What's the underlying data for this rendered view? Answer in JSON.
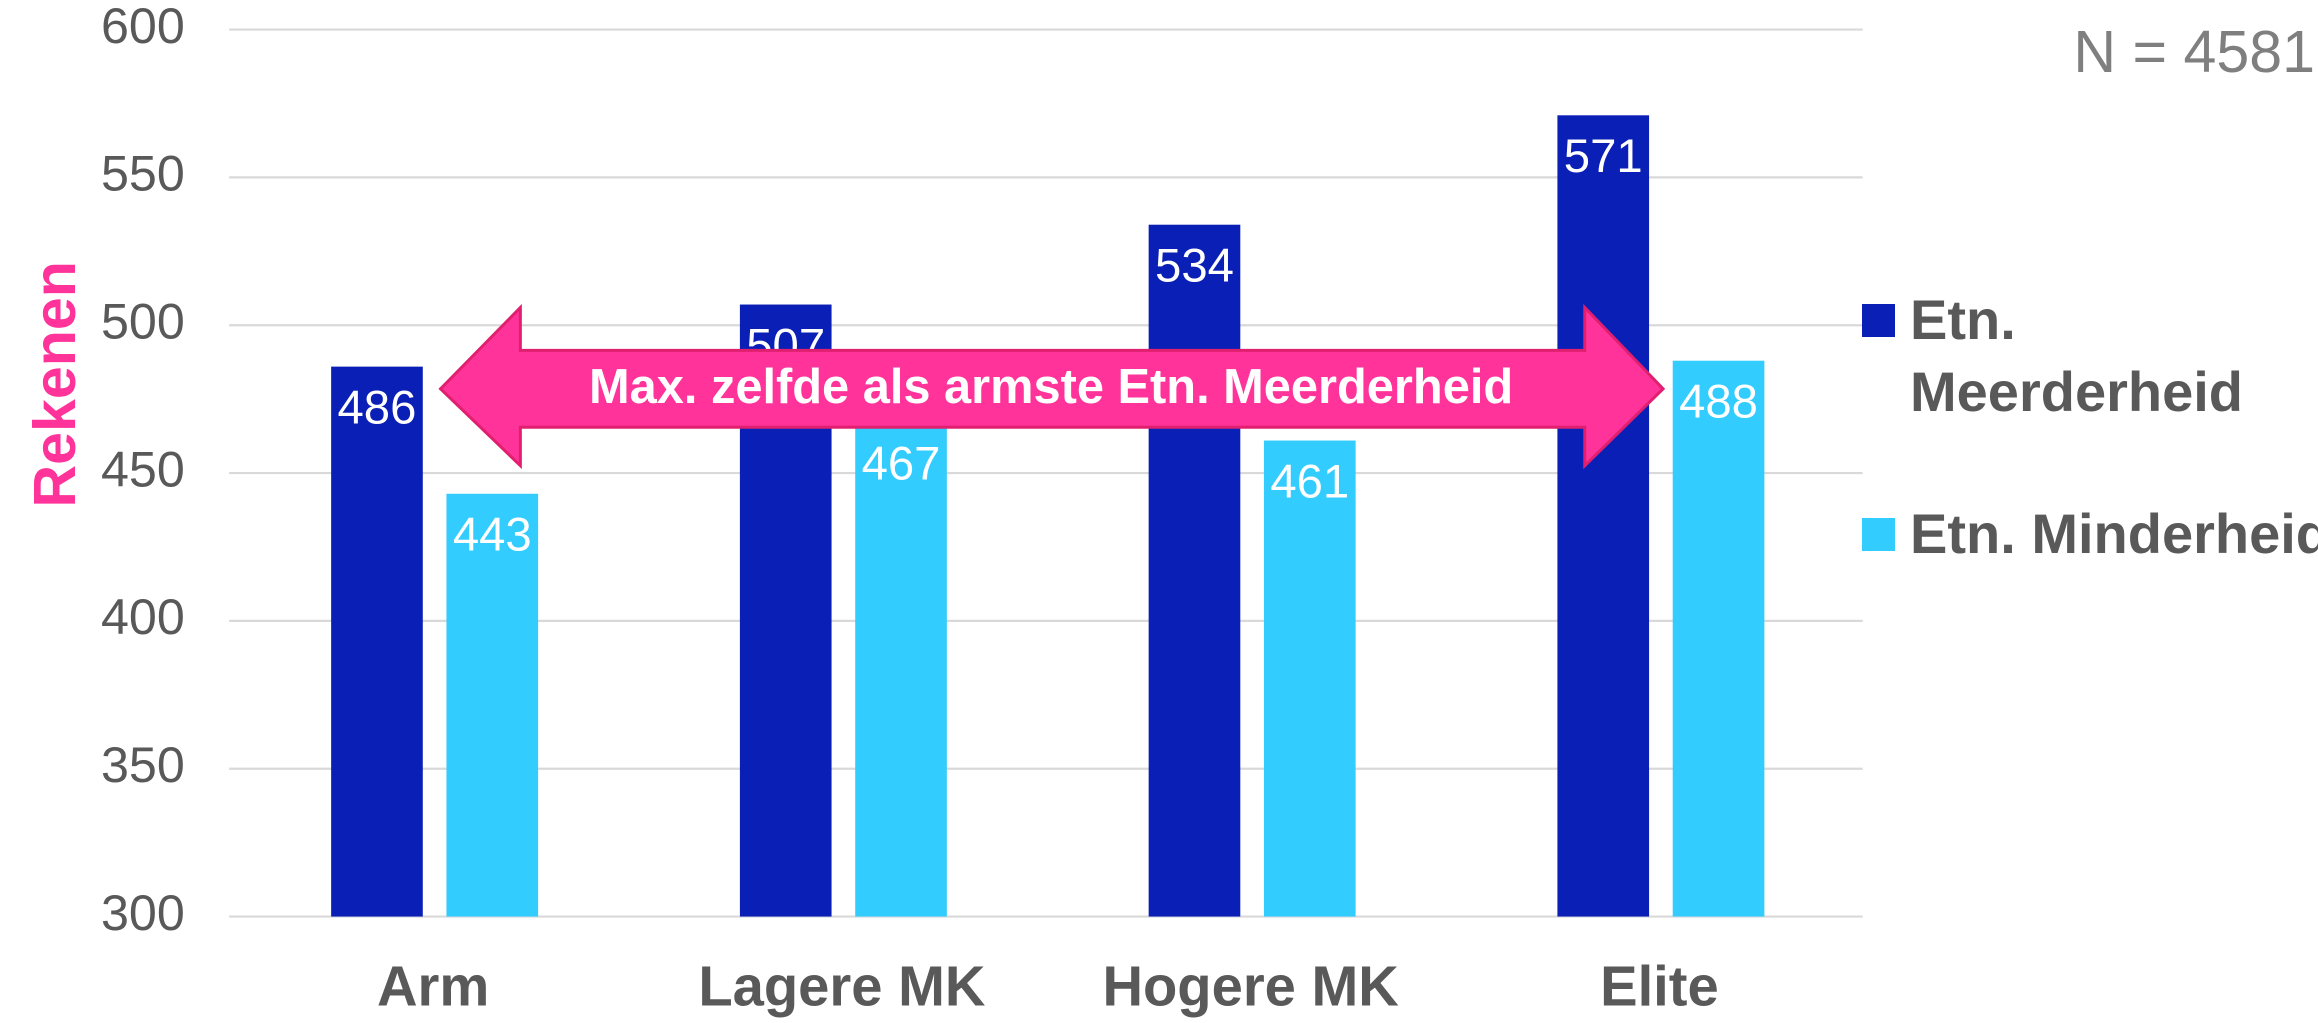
{
  "chart_data": {
    "type": "bar",
    "ylabel": "Rekenen",
    "note": "N = 4581",
    "annotation": "Max. zelfde als armste Etn. Meerderheid",
    "categories": [
      "Arm",
      "Lagere MK",
      "Hogere MK",
      "Elite"
    ],
    "series": [
      {
        "name": "Etn. Meerderheid",
        "color": "#0a1fb5",
        "values": [
          486,
          507,
          534,
          571
        ]
      },
      {
        "name": "Etn. Minderheid",
        "color": "#33ccff",
        "values": [
          443,
          467,
          461,
          488
        ]
      }
    ],
    "ylim": [
      300,
      600
    ],
    "yticks": [
      300,
      350,
      400,
      450,
      500,
      550,
      600
    ],
    "grid": true,
    "annotation_color": "#ff3399"
  }
}
